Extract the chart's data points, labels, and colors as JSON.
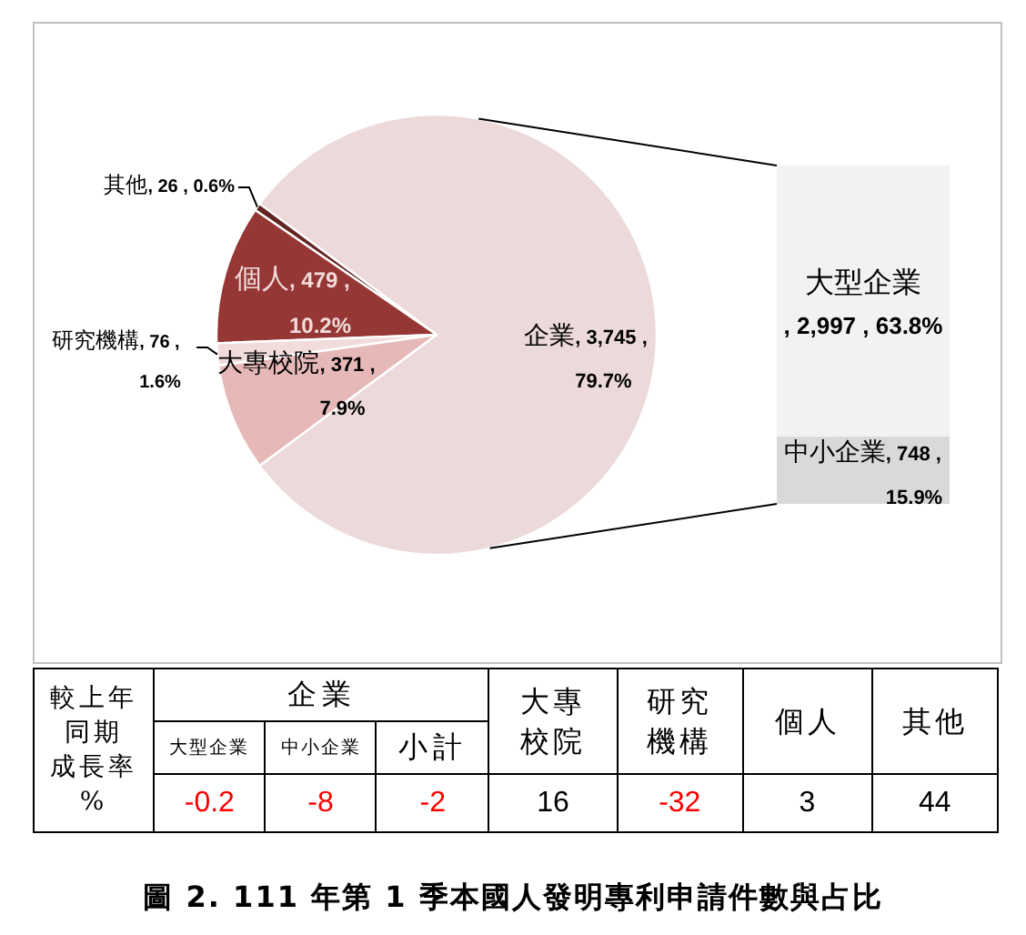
{
  "chart_data": [
    {
      "type": "pie",
      "categories": [
        "企業",
        "其他",
        "個人",
        "研究機構",
        "大專校院"
      ],
      "values": [
        3745,
        26,
        479,
        76,
        371
      ],
      "colors": [
        "#ecd9d9",
        "#632523",
        "#953735",
        "#f2dcdb",
        "#e6b9b8"
      ],
      "value_labels": [
        ", 3,745 , 79.7%",
        ", 26 , 0.6%",
        ", 479 , 10.2%",
        ", 76 , 1.6%",
        ", 371 , 7.9%"
      ],
      "annotations": [
        "圖 2. 111 年第 1 季本國人發明專利申請件數與占比"
      ]
    },
    {
      "type": "bar",
      "stacked": true,
      "categories": [
        null
      ],
      "series": [
        {
          "name": "中小企業",
          "color": "#d9d9d9",
          "values": [
            748
          ],
          "value_labels": [
            ", 748 , 15.9%"
          ]
        },
        {
          "name": "大型企業",
          "color": "#f2f2f2",
          "values": [
            2997
          ],
          "value_labels": [
            ", 2,997 , 63.8%"
          ]
        }
      ]
    },
    {
      "type": "other",
      "ylabel": "較上年同期成長率%",
      "annotations": [
        "企業"
      ],
      "categories": [
        "大型企業",
        "中小企業",
        "小計",
        "大專校院",
        "研究機構",
        "個人",
        "其他"
      ],
      "values": [
        -0.2,
        -8,
        -2,
        16,
        -32,
        3,
        44
      ],
      "colors": [
        "#ff0000",
        "#ff0000",
        "#ff0000",
        "#000000",
        "#ff0000",
        "#000000",
        "#000000"
      ],
      "data_labels": true
    }
  ]
}
